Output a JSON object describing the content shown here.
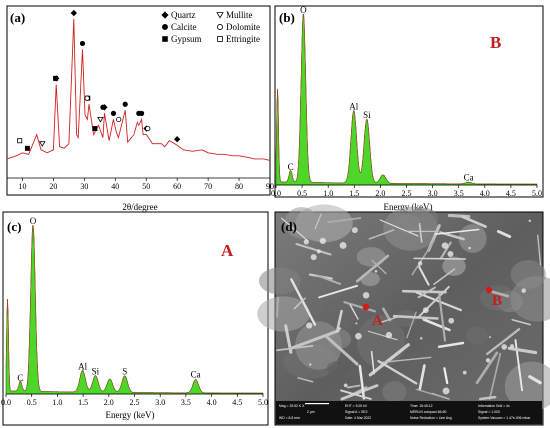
{
  "panels": {
    "a": {
      "tag": "(a)",
      "xlabel": "2θ/degree",
      "xticks": [
        "10",
        "20",
        "30",
        "40",
        "50",
        "60",
        "70",
        "80",
        "90"
      ],
      "legend": [
        {
          "marker": "diamond",
          "label": "Quartz"
        },
        {
          "marker": "triangle-down-open",
          "label": "Mullite"
        },
        {
          "marker": "circle",
          "label": "Calcite"
        },
        {
          "marker": "circle-open",
          "label": "Dolomite"
        },
        {
          "marker": "square",
          "label": "Gypsum"
        },
        {
          "marker": "square-open",
          "label": "Ettringite"
        }
      ],
      "color": "#d42020"
    },
    "b": {
      "tag": "(b)",
      "label": "B",
      "xlabel": "Energy (keV)",
      "xticks": [
        "0.0",
        "0.5",
        "1.0",
        "1.5",
        "2.0",
        "2.5",
        "3.0",
        "3.5",
        "4.0",
        "4.5",
        "5.0"
      ]
    },
    "c": {
      "tag": "(c)",
      "label": "A",
      "xlabel": "Energy (keV)",
      "xticks": [
        "0.0",
        "0.5",
        "1.0",
        "1.5",
        "2.0",
        "2.5",
        "3.0",
        "3.5",
        "4.0",
        "4.5",
        "5.0"
      ]
    },
    "d": {
      "tag": "(d)",
      "point_b": "B",
      "point_a": "A",
      "info": [
        "Mag = 25.52 K X",
        "2 µm",
        "WD = 8.8 mm",
        "EHT = 5.00 kV",
        "Signal A = SE2",
        "Date: 4 Mar 2022",
        "Time: 15:45:12",
        "MERLIN compact-66-60",
        "Noise Reduction = Line Avg",
        "Information Grid = 4x",
        "Signal = 1.000",
        "System Vacuum = 1.47e-006 mbar"
      ]
    }
  },
  "chart_data": [
    {
      "type": "line",
      "panel": "a",
      "xlabel": "2θ/degree",
      "xlim": [
        5,
        90
      ],
      "series": [
        {
          "x": [
            5,
            8,
            10,
            12,
            13,
            14.6,
            16,
            18,
            20,
            20.9,
            22,
            23.5,
            25,
            26.6,
            27.5,
            28,
            29.4,
            30.2,
            31,
            31.5,
            33,
            34.6,
            36,
            36.5,
            38,
            39.4,
            40.3,
            41,
            42,
            43.2,
            44,
            46,
            47.1,
            47.6,
            48.5,
            49,
            50.1,
            52,
            54.9,
            56,
            57.5,
            60,
            62,
            65,
            68,
            70,
            73,
            75,
            78,
            80,
            83,
            85,
            88,
            90
          ],
          "y": [
            6,
            8,
            10,
            9,
            14,
            22,
            12,
            10,
            12,
            55,
            14,
            13,
            16,
            98,
            22,
            20,
            78,
            35,
            32,
            42,
            22,
            28,
            20,
            36,
            18,
            32,
            24,
            20,
            28,
            38,
            17,
            22,
            30,
            28,
            32,
            22,
            22,
            16,
            16,
            14,
            18,
            15,
            12,
            11,
            12,
            10,
            9,
            9,
            8,
            8,
            7,
            6,
            6,
            5
          ]
        }
      ],
      "phases": [
        {
          "phase": "Gypsum",
          "two_theta": [
            11.6,
            20.7,
            31.1,
            33.4
          ]
        },
        {
          "phase": "Quartz",
          "two_theta": [
            20.9,
            26.6,
            36.5,
            50.1,
            60.0
          ]
        },
        {
          "phase": "Calcite",
          "two_theta": [
            29.4,
            36.0,
            39.4,
            43.2,
            47.6,
            48.5
          ]
        },
        {
          "phase": "Dolomite",
          "two_theta": [
            30.9,
            41.1,
            50.5
          ]
        },
        {
          "phase": "Mullite",
          "two_theta": [
            16.4,
            35.2
          ]
        },
        {
          "phase": "Ettringite",
          "two_theta": [
            9.1
          ]
        }
      ]
    },
    {
      "type": "area",
      "panel": "b",
      "xlabel": "Energy (keV)",
      "xlim": [
        0,
        5
      ],
      "peaks": [
        {
          "label": "",
          "keV": 0.03,
          "height": 0.55
        },
        {
          "label": "C",
          "keV": 0.28,
          "height": 0.07
        },
        {
          "label": "O",
          "keV": 0.525,
          "height": 1.0
        },
        {
          "label": "Al",
          "keV": 1.49,
          "height": 0.43
        },
        {
          "label": "Si",
          "keV": 1.74,
          "height": 0.38
        },
        {
          "label": "",
          "keV": 2.05,
          "height": 0.05
        },
        {
          "label": "Ca",
          "keV": 3.69,
          "height": 0.01
        }
      ]
    },
    {
      "type": "area",
      "panel": "c",
      "xlabel": "Energy (keV)",
      "xlim": [
        0,
        5
      ],
      "peaks": [
        {
          "label": "",
          "keV": 0.03,
          "height": 0.55
        },
        {
          "label": "C",
          "keV": 0.28,
          "height": 0.06
        },
        {
          "label": "O",
          "keV": 0.525,
          "height": 1.0
        },
        {
          "label": "Al",
          "keV": 1.49,
          "height": 0.13
        },
        {
          "label": "Si",
          "keV": 1.74,
          "height": 0.1
        },
        {
          "label": "",
          "keV": 2.02,
          "height": 0.08
        },
        {
          "label": "S",
          "keV": 2.31,
          "height": 0.1
        },
        {
          "label": "Ca",
          "keV": 3.69,
          "height": 0.08
        }
      ]
    }
  ]
}
